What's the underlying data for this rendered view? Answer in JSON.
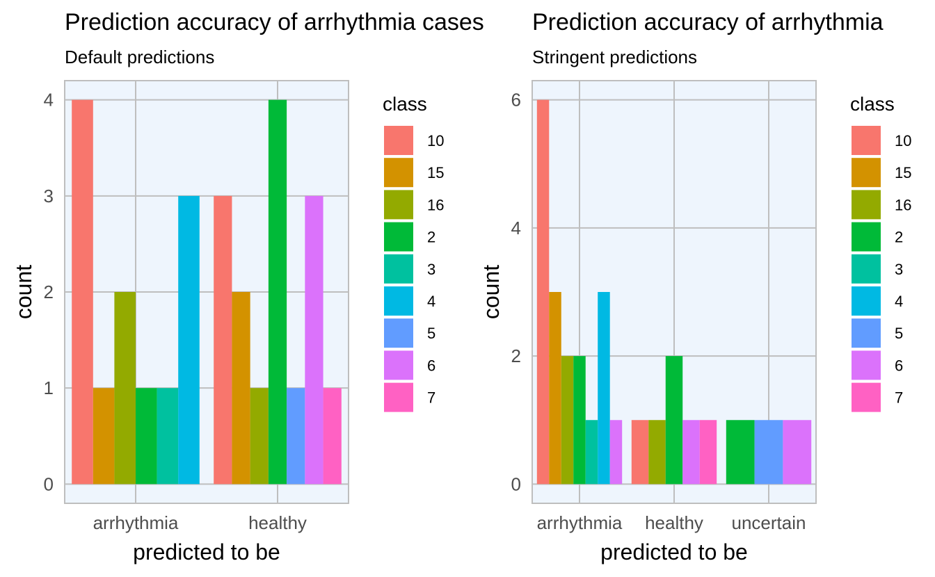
{
  "colors": {
    "panel_bg": "#EEF5FD",
    "grid": "#BEBEBE",
    "class_colors": {
      "10": "#F8766D",
      "15": "#D39200",
      "16": "#93AA00",
      "2": "#00BA38",
      "3": "#00C19F",
      "4": "#00B9E3",
      "5": "#619CFF",
      "6": "#DB72FB",
      "7": "#FF61C3"
    }
  },
  "chart_data": [
    {
      "type": "bar",
      "title": "Prediction accuracy of arrhythmia cases",
      "subtitle": "Default predictions",
      "xlabel": "predicted to be",
      "ylabel": "count",
      "categories": [
        "arrhythmia",
        "healthy"
      ],
      "ylim": [
        -0.2,
        4.2
      ],
      "yticks": [
        0,
        1,
        2,
        3,
        4
      ],
      "legend_title": "class",
      "legend_position": "right",
      "legend": [
        "10",
        "15",
        "16",
        "2",
        "3",
        "4",
        "5",
        "6",
        "7"
      ],
      "bars": [
        {
          "category": "arrhythmia",
          "items": [
            {
              "class": "10",
              "count": 4
            },
            {
              "class": "15",
              "count": 1
            },
            {
              "class": "16",
              "count": 2
            },
            {
              "class": "2",
              "count": 1
            },
            {
              "class": "3",
              "count": 1
            },
            {
              "class": "4",
              "count": 3
            }
          ]
        },
        {
          "category": "healthy",
          "items": [
            {
              "class": "10",
              "count": 3
            },
            {
              "class": "15",
              "count": 2
            },
            {
              "class": "16",
              "count": 1
            },
            {
              "class": "2",
              "count": 4
            },
            {
              "class": "5",
              "count": 1
            },
            {
              "class": "6",
              "count": 3
            },
            {
              "class": "7",
              "count": 1
            }
          ]
        }
      ]
    },
    {
      "type": "bar",
      "title": "Prediction accuracy of arrhythmia",
      "subtitle": "Stringent predictions",
      "xlabel": "predicted to be",
      "ylabel": "count",
      "categories": [
        "arrhythmia",
        "healthy",
        "uncertain"
      ],
      "ylim": [
        -0.3,
        6.3
      ],
      "yticks": [
        0,
        2,
        4,
        6
      ],
      "legend_title": "class",
      "legend_position": "right",
      "legend": [
        "10",
        "15",
        "16",
        "2",
        "3",
        "4",
        "5",
        "6",
        "7"
      ],
      "bars": [
        {
          "category": "arrhythmia",
          "items": [
            {
              "class": "10",
              "count": 6
            },
            {
              "class": "15",
              "count": 3
            },
            {
              "class": "16",
              "count": 2
            },
            {
              "class": "2",
              "count": 2
            },
            {
              "class": "3",
              "count": 1
            },
            {
              "class": "4",
              "count": 3
            },
            {
              "class": "6",
              "count": 1
            }
          ]
        },
        {
          "category": "healthy",
          "items": [
            {
              "class": "10",
              "count": 1
            },
            {
              "class": "16",
              "count": 1
            },
            {
              "class": "2",
              "count": 2
            },
            {
              "class": "6",
              "count": 1
            },
            {
              "class": "7",
              "count": 1
            }
          ]
        },
        {
          "category": "uncertain",
          "items": [
            {
              "class": "2",
              "count": 1
            },
            {
              "class": "5",
              "count": 1
            },
            {
              "class": "6",
              "count": 1
            }
          ]
        }
      ]
    }
  ]
}
